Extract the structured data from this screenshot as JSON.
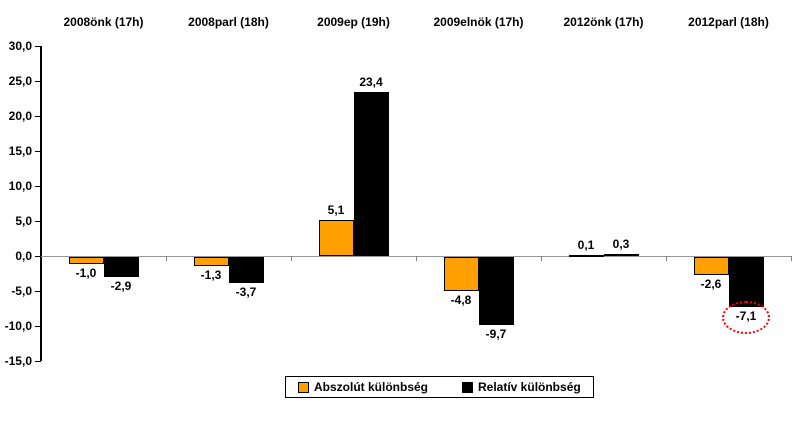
{
  "chart_data": {
    "type": "bar",
    "title": "",
    "xlabel": "",
    "ylabel": "",
    "categories": [
      "2008önk (17h)",
      "2008parl (18h)",
      "2009ep (19h)",
      "2009elnök (17h)",
      "2012önk (17h)",
      "2012parl (18h)"
    ],
    "series": [
      {
        "name": "Abszolút különbség",
        "color": "#FFA000",
        "values": [
          -1.0,
          -1.3,
          5.1,
          -4.8,
          0.1,
          -2.6
        ]
      },
      {
        "name": "Relatív különbség",
        "color": "#000000",
        "values": [
          -2.9,
          -3.7,
          23.4,
          -9.7,
          0.3,
          -7.1
        ]
      }
    ],
    "value_labels": [
      [
        "-1,0",
        "-1,3",
        "5,1",
        "-4,8",
        "0,1",
        "-2,6"
      ],
      [
        "-2,9",
        "-3,7",
        "23,4",
        "-9,7",
        "0,3",
        "-7,1"
      ]
    ],
    "ylim": [
      -15,
      30
    ],
    "ytick_step": 5,
    "ytick_labels": [
      "30,0",
      "25,0",
      "20,0",
      "15,0",
      "10,0",
      "5,0",
      "0,0",
      "-5,0",
      "-10,0",
      "-15,0"
    ],
    "grid": false,
    "legend_position": "bottom",
    "category_labels_position": "top",
    "annotation": {
      "style": "dotted-ellipse",
      "color": "#FF0000",
      "series": 1,
      "category": 5,
      "label": "-7,1"
    }
  },
  "legend": {
    "items": [
      {
        "label": "Abszolút különbség",
        "color": "#FFA000"
      },
      {
        "label": "Relatív különbség",
        "color": "#000000"
      }
    ]
  }
}
